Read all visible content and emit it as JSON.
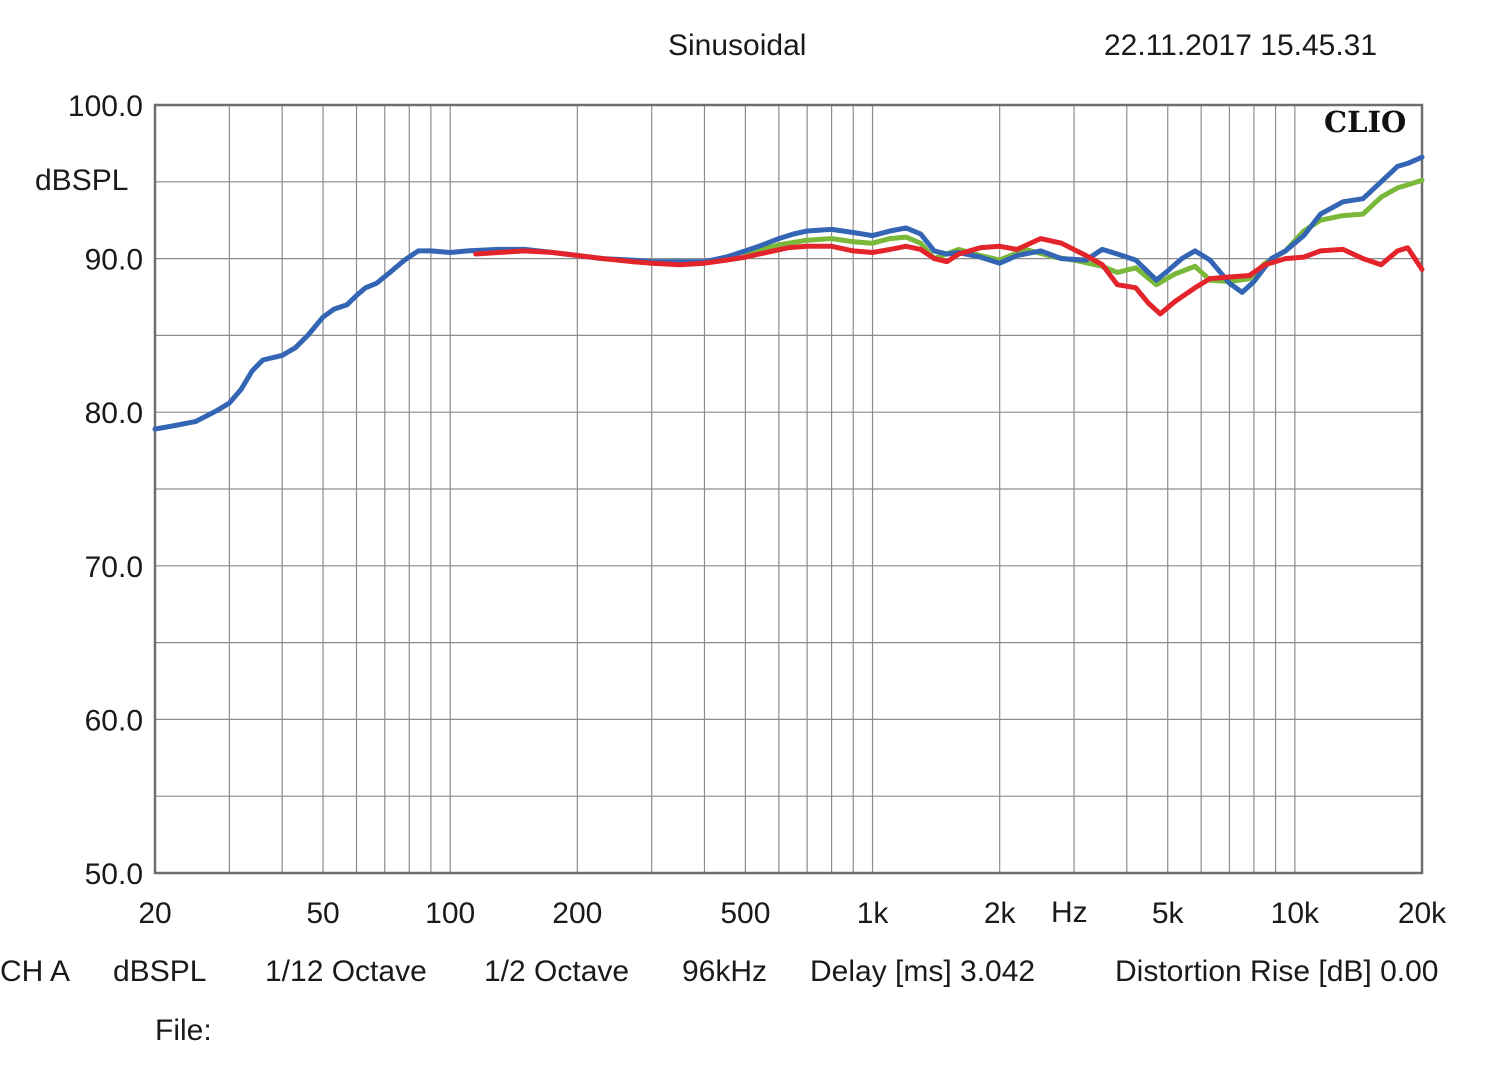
{
  "header": {
    "mode": "Sinusoidal",
    "datetime": "22.11.2017 15.45.31",
    "brand": "CLIO"
  },
  "footer": {
    "channel": "CH A",
    "unit": "dBSPL",
    "resolution": "1/12 Octave",
    "smoothing": "1/2 Octave",
    "sample_rate": "96kHz",
    "delay": "Delay [ms] 3.042",
    "distortion": "Distortion Rise [dB] 0.00",
    "file_label": "File:"
  },
  "chart_data": {
    "type": "line",
    "title": "Sinusoidal",
    "xlabel": "Hz",
    "ylabel": "dBSPL",
    "x_scale": "log",
    "xlim": [
      20,
      20000
    ],
    "ylim": [
      50,
      100
    ],
    "grid": true,
    "x_tick_labels": [
      {
        "value": 20,
        "label": "20"
      },
      {
        "value": 50,
        "label": "50"
      },
      {
        "value": 100,
        "label": "100"
      },
      {
        "value": 200,
        "label": "200"
      },
      {
        "value": 500,
        "label": "500"
      },
      {
        "value": 1000,
        "label": "1k"
      },
      {
        "value": 2000,
        "label": "2k"
      },
      {
        "value": 5000,
        "label": "5k"
      },
      {
        "value": 10000,
        "label": "10k"
      },
      {
        "value": 20000,
        "label": "20k"
      }
    ],
    "y_tick_labels": [
      {
        "value": 100,
        "label": "100.0"
      },
      {
        "value": 90,
        "label": "90.0"
      },
      {
        "value": 80,
        "label": "80.0"
      },
      {
        "value": 70,
        "label": "70.0"
      },
      {
        "value": 60,
        "label": "60.0"
      },
      {
        "value": 50,
        "label": "50.0"
      }
    ],
    "series": [
      {
        "color": "#7ab83a",
        "points": [
          [
            500,
            90.3
          ],
          [
            600,
            90.9
          ],
          [
            700,
            91.2
          ],
          [
            800,
            91.3
          ],
          [
            900,
            91.1
          ],
          [
            1000,
            91.0
          ],
          [
            1100,
            91.3
          ],
          [
            1200,
            91.4
          ],
          [
            1300,
            91.0
          ],
          [
            1400,
            90.0
          ],
          [
            1600,
            90.6
          ],
          [
            1800,
            90.2
          ],
          [
            2000,
            89.9
          ],
          [
            2300,
            90.6
          ],
          [
            2700,
            90.1
          ],
          [
            3000,
            89.9
          ],
          [
            3500,
            89.5
          ],
          [
            3800,
            89.1
          ],
          [
            4200,
            89.4
          ],
          [
            4700,
            88.3
          ],
          [
            5200,
            89.0
          ],
          [
            5800,
            89.5
          ],
          [
            6300,
            88.6
          ],
          [
            7000,
            88.5
          ],
          [
            7800,
            88.7
          ],
          [
            8500,
            89.7
          ],
          [
            9500,
            90.5
          ],
          [
            10500,
            91.8
          ],
          [
            11500,
            92.5
          ],
          [
            13000,
            92.8
          ],
          [
            14500,
            92.9
          ],
          [
            16000,
            94.0
          ],
          [
            17500,
            94.6
          ],
          [
            18500,
            94.8
          ],
          [
            20000,
            95.1
          ]
        ]
      },
      {
        "color": "#3465b4",
        "points": [
          [
            20,
            78.9
          ],
          [
            22,
            79.1
          ],
          [
            25,
            79.4
          ],
          [
            28,
            80.1
          ],
          [
            30,
            80.6
          ],
          [
            32,
            81.5
          ],
          [
            34,
            82.7
          ],
          [
            36,
            83.4
          ],
          [
            40,
            83.7
          ],
          [
            43,
            84.2
          ],
          [
            46,
            85.0
          ],
          [
            50,
            86.2
          ],
          [
            53,
            86.7
          ],
          [
            57,
            87.0
          ],
          [
            60,
            87.6
          ],
          [
            63,
            88.1
          ],
          [
            67,
            88.4
          ],
          [
            72,
            89.1
          ],
          [
            78,
            89.9
          ],
          [
            84,
            90.5
          ],
          [
            90,
            90.5
          ],
          [
            100,
            90.4
          ],
          [
            110,
            90.5
          ],
          [
            130,
            90.6
          ],
          [
            150,
            90.6
          ],
          [
            175,
            90.4
          ],
          [
            200,
            90.2
          ],
          [
            230,
            90.0
          ],
          [
            270,
            89.9
          ],
          [
            300,
            89.8
          ],
          [
            350,
            89.8
          ],
          [
            400,
            89.8
          ],
          [
            450,
            90.1
          ],
          [
            500,
            90.5
          ],
          [
            550,
            90.9
          ],
          [
            600,
            91.3
          ],
          [
            650,
            91.6
          ],
          [
            700,
            91.8
          ],
          [
            800,
            91.9
          ],
          [
            900,
            91.7
          ],
          [
            1000,
            91.5
          ],
          [
            1100,
            91.8
          ],
          [
            1200,
            92.0
          ],
          [
            1300,
            91.6
          ],
          [
            1400,
            90.5
          ],
          [
            1500,
            90.3
          ],
          [
            1600,
            90.4
          ],
          [
            1800,
            90.1
          ],
          [
            2000,
            89.7
          ],
          [
            2200,
            90.2
          ],
          [
            2500,
            90.5
          ],
          [
            2800,
            90.0
          ],
          [
            3200,
            89.9
          ],
          [
            3500,
            90.6
          ],
          [
            3800,
            90.3
          ],
          [
            4200,
            89.9
          ],
          [
            4700,
            88.6
          ],
          [
            5000,
            89.2
          ],
          [
            5400,
            90.0
          ],
          [
            5800,
            90.5
          ],
          [
            6300,
            89.9
          ],
          [
            7000,
            88.4
          ],
          [
            7500,
            87.8
          ],
          [
            8000,
            88.5
          ],
          [
            8800,
            90.0
          ],
          [
            9500,
            90.5
          ],
          [
            10500,
            91.5
          ],
          [
            11500,
            92.9
          ],
          [
            13000,
            93.7
          ],
          [
            14500,
            93.9
          ],
          [
            16000,
            95.0
          ],
          [
            17500,
            96.0
          ],
          [
            18500,
            96.2
          ],
          [
            20000,
            96.6
          ]
        ]
      },
      {
        "color": "#e3242b",
        "points": [
          [
            115,
            90.3
          ],
          [
            130,
            90.4
          ],
          [
            150,
            90.5
          ],
          [
            175,
            90.4
          ],
          [
            200,
            90.2
          ],
          [
            230,
            90.0
          ],
          [
            270,
            89.8
          ],
          [
            300,
            89.7
          ],
          [
            350,
            89.6
          ],
          [
            400,
            89.7
          ],
          [
            450,
            89.9
          ],
          [
            500,
            90.1
          ],
          [
            560,
            90.4
          ],
          [
            630,
            90.7
          ],
          [
            700,
            90.8
          ],
          [
            800,
            90.8
          ],
          [
            900,
            90.5
          ],
          [
            1000,
            90.4
          ],
          [
            1100,
            90.6
          ],
          [
            1200,
            90.8
          ],
          [
            1300,
            90.6
          ],
          [
            1400,
            90.0
          ],
          [
            1500,
            89.8
          ],
          [
            1600,
            90.3
          ],
          [
            1800,
            90.7
          ],
          [
            2000,
            90.8
          ],
          [
            2200,
            90.6
          ],
          [
            2500,
            91.3
          ],
          [
            2800,
            91.0
          ],
          [
            3200,
            90.2
          ],
          [
            3500,
            89.6
          ],
          [
            3800,
            88.3
          ],
          [
            4200,
            88.1
          ],
          [
            4500,
            87.1
          ],
          [
            4800,
            86.4
          ],
          [
            5200,
            87.2
          ],
          [
            5800,
            88.1
          ],
          [
            6300,
            88.7
          ],
          [
            7000,
            88.8
          ],
          [
            7800,
            88.9
          ],
          [
            8500,
            89.6
          ],
          [
            9500,
            90.0
          ],
          [
            10500,
            90.1
          ],
          [
            11500,
            90.5
          ],
          [
            13000,
            90.6
          ],
          [
            14500,
            90.0
          ],
          [
            16000,
            89.6
          ],
          [
            17500,
            90.5
          ],
          [
            18500,
            90.7
          ],
          [
            20000,
            89.3
          ]
        ]
      }
    ]
  }
}
